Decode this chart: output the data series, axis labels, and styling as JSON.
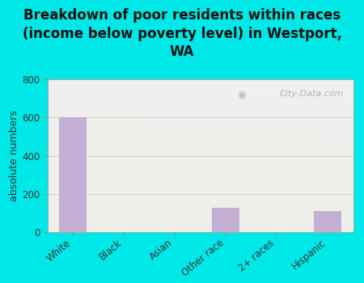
{
  "title": "Breakdown of poor residents within races\n(income below poverty level) in Westport,\nWA",
  "categories": [
    "White",
    "Black",
    "Asian",
    "Other race",
    "2+ races",
    "Hispanic"
  ],
  "values": [
    603,
    0,
    0,
    125,
    0,
    110
  ],
  "bar_color": "#c4afd4",
  "ylabel": "absolute numbers",
  "ylim": [
    0,
    800
  ],
  "yticks": [
    0,
    200,
    400,
    600,
    800
  ],
  "background_color": "#00e8e8",
  "plot_bg_top_right": "#f0f0f0",
  "plot_bg_bottom_left": "#e8f2d8",
  "watermark": "City-Data.com",
  "title_fontsize": 12,
  "ylabel_fontsize": 9,
  "tick_fontsize": 8.5
}
